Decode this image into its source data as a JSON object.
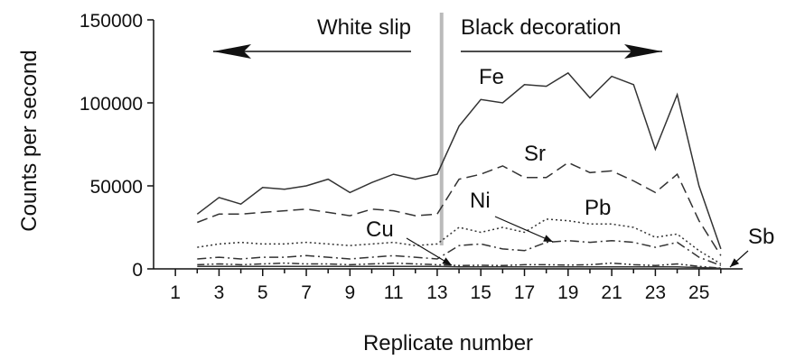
{
  "chart_data": {
    "type": "line",
    "xlabel": "Replicate number",
    "ylabel": "Counts per second",
    "xlim": [
      0,
      27
    ],
    "ylim": [
      0,
      150000
    ],
    "x_ticks": [
      1,
      3,
      5,
      7,
      9,
      11,
      13,
      15,
      17,
      19,
      21,
      23,
      25
    ],
    "y_ticks": [
      0,
      50000,
      100000,
      150000
    ],
    "divider_x": 13.2,
    "annotations": {
      "left_region": "White slip",
      "right_region": "Black decoration"
    },
    "series": [
      {
        "name": "Fe",
        "style": "solid",
        "x": [
          2,
          3,
          4,
          5,
          6,
          7,
          8,
          9,
          10,
          11,
          12,
          13,
          14,
          15,
          16,
          17,
          18,
          19,
          20,
          21,
          22,
          23,
          24,
          25,
          26
        ],
        "values": [
          33000,
          43000,
          39000,
          49000,
          48000,
          50000,
          54000,
          46000,
          52000,
          57000,
          54000,
          57000,
          86000,
          102000,
          100000,
          111000,
          110000,
          118000,
          103000,
          116000,
          111000,
          72000,
          105000,
          50000,
          12000
        ]
      },
      {
        "name": "Sr",
        "style": "dashed",
        "x": [
          2,
          3,
          4,
          5,
          6,
          7,
          8,
          9,
          10,
          11,
          12,
          13,
          14,
          15,
          16,
          17,
          18,
          19,
          20,
          21,
          22,
          23,
          24,
          25,
          26
        ],
        "values": [
          28000,
          33000,
          33000,
          34000,
          35000,
          36000,
          34000,
          32000,
          36000,
          35000,
          32000,
          33000,
          54000,
          57000,
          62000,
          55000,
          55000,
          64000,
          58000,
          59000,
          53000,
          46000,
          57000,
          29000,
          8000
        ]
      },
      {
        "name": "Pb",
        "style": "dotted",
        "x": [
          2,
          3,
          4,
          5,
          6,
          7,
          8,
          9,
          10,
          11,
          12,
          13,
          14,
          15,
          16,
          17,
          18,
          19,
          20,
          21,
          22,
          23,
          24,
          25,
          26
        ],
        "values": [
          13000,
          15000,
          16000,
          15000,
          15000,
          16000,
          15000,
          14000,
          15000,
          16000,
          14000,
          15000,
          25000,
          22000,
          25000,
          22000,
          30000,
          29000,
          27000,
          27000,
          25000,
          19000,
          21000,
          11000,
          3000
        ]
      },
      {
        "name": "Ni",
        "style": "dashdot",
        "x": [
          2,
          3,
          4,
          5,
          6,
          7,
          8,
          9,
          10,
          11,
          12,
          13,
          14,
          15,
          16,
          17,
          18,
          19,
          20,
          21,
          22,
          23,
          24,
          25,
          26
        ],
        "values": [
          6000,
          7000,
          6000,
          7000,
          7000,
          8000,
          7000,
          6000,
          7000,
          8000,
          7000,
          6000,
          14000,
          15000,
          12000,
          11000,
          16000,
          17000,
          16000,
          17000,
          16000,
          13000,
          16000,
          7000,
          2000
        ]
      },
      {
        "name": "Cu",
        "style": "dashdotdot",
        "x": [
          2,
          3,
          4,
          5,
          6,
          7,
          8,
          9,
          10,
          11,
          12,
          13,
          14,
          15,
          16,
          17,
          18,
          19,
          20,
          21,
          22,
          23,
          24,
          25,
          26
        ],
        "values": [
          2500,
          3000,
          2500,
          3000,
          3500,
          3000,
          3000,
          2500,
          3000,
          3500,
          3000,
          2500,
          2000,
          2200,
          2000,
          2500,
          2500,
          2300,
          2500,
          3500,
          2500,
          2000,
          3000,
          1500,
          500
        ]
      },
      {
        "name": "Sb",
        "style": "solid-thin",
        "x": [
          2,
          3,
          4,
          5,
          6,
          7,
          8,
          9,
          10,
          11,
          12,
          13,
          14,
          15,
          16,
          17,
          18,
          19,
          20,
          21,
          22,
          23,
          24,
          25,
          26
        ],
        "values": [
          1500,
          1500,
          1500,
          1500,
          1500,
          1500,
          1500,
          1500,
          1500,
          1500,
          1500,
          1500,
          1200,
          1200,
          1200,
          1200,
          1200,
          1200,
          1200,
          1200,
          1200,
          1200,
          1200,
          800,
          300
        ]
      }
    ],
    "labels": {
      "Fe": "Fe",
      "Sr": "Sr",
      "Ni": "Ni",
      "Pb": "Pb",
      "Cu": "Cu",
      "Sb": "Sb"
    }
  }
}
